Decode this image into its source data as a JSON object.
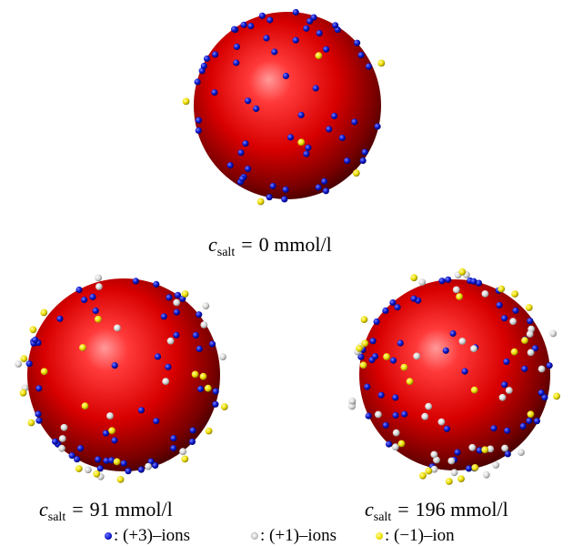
{
  "panels": [
    {
      "c_symbol": "c",
      "subscript": "salt",
      "operator": "=",
      "value_text": "0 mmol/l",
      "salt_mmol_per_l": 0
    },
    {
      "c_symbol": "c",
      "subscript": "salt",
      "operator": "=",
      "value_text": "91 mmol/l",
      "salt_mmol_per_l": 91
    },
    {
      "c_symbol": "c",
      "subscript": "salt",
      "operator": "=",
      "value_text": "196 mmol/l",
      "salt_mmol_per_l": 196
    }
  ],
  "legend": [
    {
      "label": ": (+3)–ions",
      "color": "#0b14c8"
    },
    {
      "label": ": (+1)–ions",
      "color": "#e6e6e6"
    },
    {
      "label": ": (−1)–ion",
      "color": "#f0e000"
    }
  ],
  "colors": {
    "sphere": "#e00000",
    "trivalent_cation": "#0b14c8",
    "monovalent_cation": "#e6e6e6",
    "monovalent_anion": "#f0e000"
  }
}
